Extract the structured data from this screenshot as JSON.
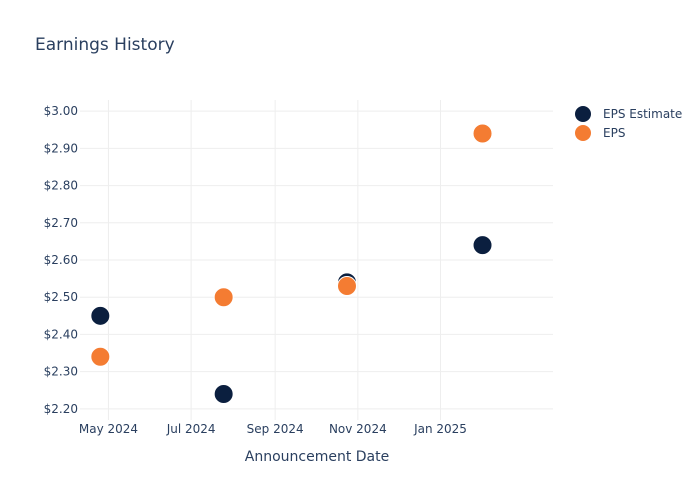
{
  "chart_data": {
    "type": "scatter",
    "title": "Earnings History",
    "xlabel": "Announcement Date",
    "ylabel": "",
    "x_ticks": [
      {
        "date": "2024-05-01",
        "label": "May 2024"
      },
      {
        "date": "2024-07-01",
        "label": "Jul 2024"
      },
      {
        "date": "2024-09-01",
        "label": "Sep 2024"
      },
      {
        "date": "2024-11-01",
        "label": "Nov 2024"
      },
      {
        "date": "2025-01-01",
        "label": "Jan 2025"
      }
    ],
    "xlim": [
      "2024-04-10",
      "2025-03-25"
    ],
    "ylim": [
      2.17,
      3.03
    ],
    "y_ticks": [
      2.2,
      2.3,
      2.4,
      2.5,
      2.6,
      2.7,
      2.8,
      2.9,
      3.0
    ],
    "y_tick_prefix": "$",
    "grid": true,
    "legend_position": "top-right",
    "series": [
      {
        "name": "EPS Estimate",
        "color": "#0b1f3f",
        "points": [
          {
            "x": "2024-04-25",
            "y": 2.45
          },
          {
            "x": "2024-07-25",
            "y": 2.24
          },
          {
            "x": "2024-10-24",
            "y": 2.54
          },
          {
            "x": "2025-02-01",
            "y": 2.64
          }
        ]
      },
      {
        "name": "EPS",
        "color": "#f47c32",
        "points": [
          {
            "x": "2024-04-25",
            "y": 2.34
          },
          {
            "x": "2024-07-25",
            "y": 2.5
          },
          {
            "x": "2024-10-24",
            "y": 2.53
          },
          {
            "x": "2025-02-01",
            "y": 2.94
          }
        ]
      }
    ]
  }
}
